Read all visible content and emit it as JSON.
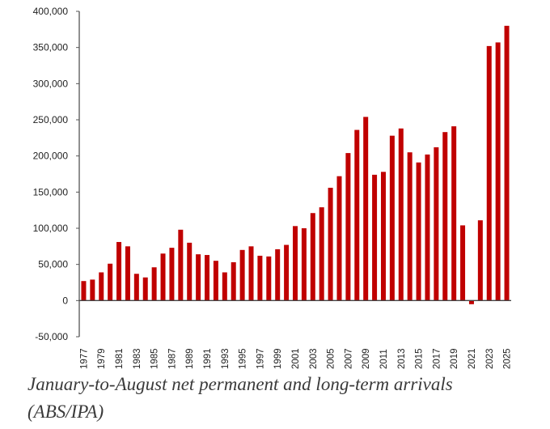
{
  "caption": "January-to-August net permanent and long-term arrivals (ABS/IPA)",
  "chart_data": {
    "type": "bar",
    "title": "",
    "xlabel": "",
    "ylabel": "",
    "ylim": [
      -50000,
      400000
    ],
    "yticks": [
      -50000,
      0,
      50000,
      100000,
      150000,
      200000,
      250000,
      300000,
      350000,
      400000
    ],
    "ytick_labels": [
      "-50,000",
      "0",
      "50,000",
      "100,000",
      "150,000",
      "200,000",
      "250,000",
      "300,000",
      "350,000",
      "400,000"
    ],
    "grid": false,
    "bar_color": "#c00000",
    "categories": [
      "1977",
      "1978",
      "1979",
      "1980",
      "1981",
      "1982",
      "1983",
      "1984",
      "1985",
      "1986",
      "1987",
      "1988",
      "1989",
      "1990",
      "1991",
      "1992",
      "1993",
      "1994",
      "1995",
      "1996",
      "1997",
      "1998",
      "1999",
      "2000",
      "2001",
      "2002",
      "2003",
      "2004",
      "2005",
      "2006",
      "2007",
      "2008",
      "2009",
      "2010",
      "2011",
      "2012",
      "2013",
      "2014",
      "2015",
      "2016",
      "2017",
      "2018",
      "2019",
      "2020",
      "2021",
      "2022",
      "2023",
      "2024",
      "2025"
    ],
    "xtick_labels": [
      "1977",
      "1979",
      "1981",
      "1983",
      "1985",
      "1987",
      "1989",
      "1991",
      "1993",
      "1995",
      "1997",
      "1999",
      "2001",
      "2003",
      "2005",
      "2007",
      "2009",
      "2011",
      "2013",
      "2015",
      "2017",
      "2019",
      "2021",
      "2023",
      "2025"
    ],
    "values": [
      27000,
      29000,
      39000,
      51000,
      81000,
      75000,
      37000,
      32000,
      46000,
      65000,
      73000,
      98000,
      80000,
      64000,
      63000,
      55000,
      39000,
      53000,
      70000,
      75000,
      62000,
      61000,
      71000,
      77000,
      103000,
      100000,
      121000,
      129000,
      156000,
      172000,
      204000,
      236000,
      254000,
      174000,
      178000,
      228000,
      238000,
      205000,
      191000,
      202000,
      212000,
      233000,
      241000,
      104000,
      -5000,
      111000,
      352000,
      357000,
      380000
    ]
  }
}
